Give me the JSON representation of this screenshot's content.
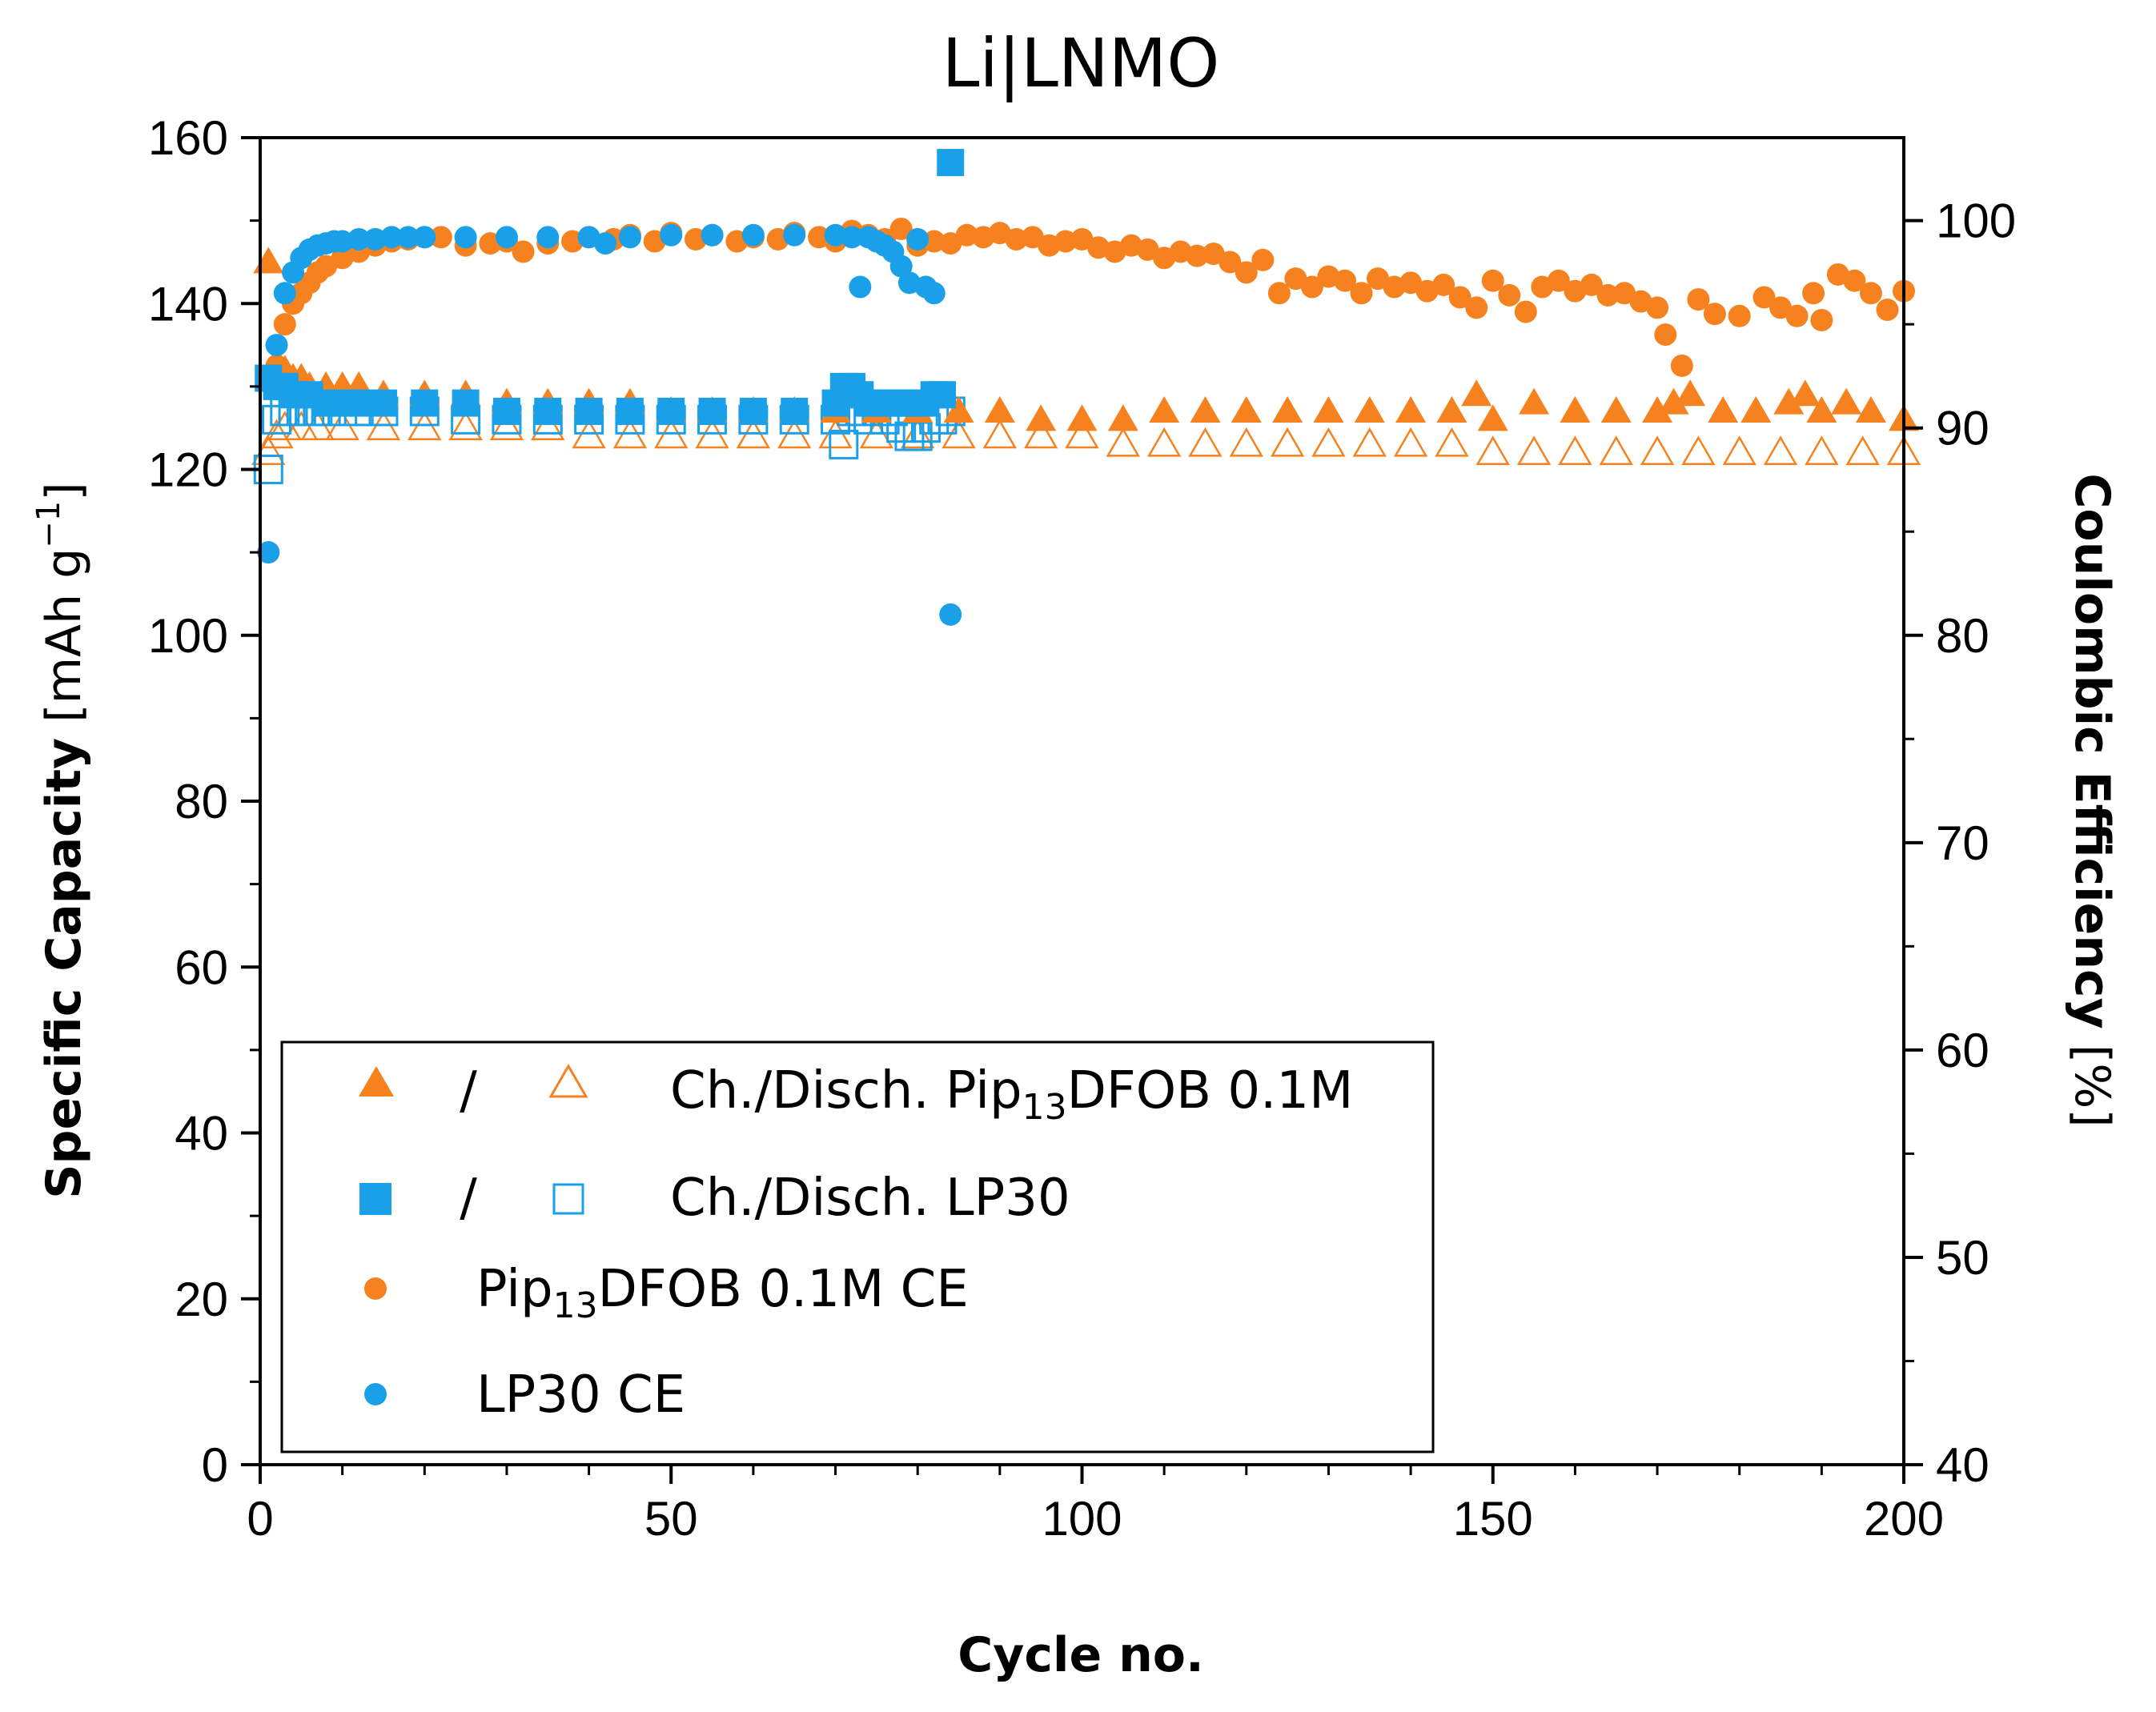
{
  "chart_data": {
    "type": "scatter",
    "title": "Li|LNMO",
    "xlabel": "Cycle no.",
    "ylabel": {
      "main": "Specific Capacity",
      "unit_prefix": "[mAh g",
      "unit_sup": "−1",
      "unit_suffix": "]"
    },
    "y2label": {
      "main": "Coulombic Efficiency",
      "unit": "[%]"
    },
    "xlim": [
      0,
      200
    ],
    "ylim": [
      0,
      160
    ],
    "y2lim": [
      40,
      104
    ],
    "x_ticks": [
      0,
      50,
      100,
      150,
      200
    ],
    "y_ticks": [
      0,
      20,
      40,
      60,
      80,
      100,
      120,
      140,
      160
    ],
    "y2_ticks": [
      40,
      50,
      60,
      70,
      80,
      90,
      100
    ],
    "colors": {
      "orange": "#F5821F",
      "blue": "#1AA0E8"
    },
    "legend": {
      "position": "bottom-left",
      "sep": "/",
      "entries": [
        {
          "id": "pip-ch-disch",
          "pre": "Ch./Disch. Pip",
          "sub": "13",
          "post": "DFOB 0.1M"
        },
        {
          "id": "lp30-ch-disch",
          "pre": "Ch./Disch. LP30",
          "sub": "",
          "post": ""
        },
        {
          "id": "pip-ce",
          "pre": "Pip",
          "sub": "13",
          "post": "DFOB 0.1M CE"
        },
        {
          "id": "lp30-ce",
          "pre": "LP30 CE",
          "sub": "",
          "post": ""
        }
      ]
    },
    "series": [
      {
        "name": "Ch. Pip13DFOB 0.1M",
        "axis": "left",
        "marker": "triangle",
        "filled": true,
        "color": "#F5821F",
        "x": [
          1,
          2,
          3,
          4,
          5,
          6,
          8,
          10,
          12,
          15,
          20,
          25,
          30,
          35,
          40,
          45,
          50,
          55,
          60,
          65,
          70,
          75,
          80,
          85,
          90,
          95,
          100,
          105,
          110,
          115,
          120,
          125,
          130,
          135,
          140,
          145,
          148,
          150,
          155,
          160,
          165,
          170,
          172,
          174,
          178,
          182,
          186,
          188,
          190,
          193,
          196,
          200
        ],
        "y": [
          145,
          133,
          132,
          131,
          131,
          130,
          130,
          130,
          130,
          129,
          129,
          129,
          128,
          128,
          128,
          128,
          127,
          127,
          127,
          127,
          127,
          127,
          127,
          127,
          127,
          126,
          126,
          126,
          127,
          127,
          127,
          127,
          127,
          127,
          127,
          127,
          129,
          126,
          128,
          127,
          127,
          127,
          128,
          129,
          127,
          127,
          128,
          129,
          127,
          128,
          127,
          126
        ]
      },
      {
        "name": "Disch. Pip13DFOB 0.1M",
        "axis": "left",
        "marker": "triangle",
        "filled": false,
        "color": "#F5821F",
        "x": [
          1,
          2,
          3,
          5,
          7,
          10,
          15,
          20,
          25,
          30,
          35,
          40,
          45,
          50,
          55,
          60,
          65,
          70,
          75,
          80,
          85,
          90,
          95,
          100,
          105,
          110,
          115,
          120,
          125,
          130,
          135,
          140,
          145,
          150,
          155,
          160,
          165,
          170,
          175,
          180,
          185,
          190,
          195,
          200
        ],
        "y": [
          122,
          124,
          125,
          125,
          125,
          125,
          125,
          125,
          125,
          125,
          125,
          124,
          124,
          124,
          124,
          124,
          124,
          124,
          124,
          124,
          124,
          124,
          124,
          124,
          123,
          123,
          123,
          123,
          123,
          123,
          123,
          123,
          123,
          122,
          122,
          122,
          122,
          122,
          122,
          122,
          122,
          122,
          122,
          122
        ]
      },
      {
        "name": "Pip13DFOB 0.1M CE",
        "axis": "right",
        "marker": "circle",
        "filled": true,
        "color": "#F5821F",
        "x": [
          1,
          2,
          3,
          4,
          5,
          6,
          7,
          8,
          10,
          12,
          14,
          16,
          18,
          20,
          22,
          25,
          28,
          30,
          32,
          35,
          38,
          40,
          43,
          45,
          48,
          50,
          53,
          55,
          58,
          60,
          63,
          65,
          68,
          70,
          72,
          74,
          76,
          78,
          80,
          82,
          84,
          86,
          88,
          90,
          92,
          94,
          96,
          98,
          100,
          102,
          104,
          106,
          108,
          110,
          112,
          114,
          116,
          118,
          120,
          122,
          124,
          126,
          128,
          130,
          132,
          134,
          136,
          138,
          140,
          142,
          144,
          146,
          148,
          150,
          152,
          154,
          156,
          158,
          160,
          162,
          164,
          166,
          168,
          170,
          171,
          173,
          175,
          177,
          180,
          183,
          185,
          187,
          189,
          190,
          192,
          194,
          196,
          198,
          200
        ],
        "y": [
          84,
          93,
          95,
          96,
          96.5,
          97,
          97.5,
          97.8,
          98.2,
          98.5,
          98.8,
          99,
          99.1,
          99.2,
          99.2,
          98.8,
          98.9,
          99,
          98.5,
          98.9,
          99,
          99.2,
          99.1,
          99.3,
          99,
          99.4,
          99.1,
          99.3,
          99,
          99.2,
          99.1,
          99.4,
          99.2,
          99,
          99.5,
          99.3,
          99.1,
          99.6,
          98.8,
          99,
          98.9,
          99.3,
          99.2,
          99.4,
          99.1,
          99.2,
          98.8,
          99,
          99.1,
          98.7,
          98.5,
          98.8,
          98.6,
          98.2,
          98.5,
          98.3,
          98.4,
          98,
          97.5,
          98.1,
          96.5,
          97.2,
          96.8,
          97.3,
          97.1,
          96.5,
          97.2,
          96.8,
          97,
          96.6,
          96.9,
          96.3,
          95.8,
          97.1,
          96.4,
          95.6,
          96.8,
          97.1,
          96.6,
          96.9,
          96.4,
          96.5,
          96.1,
          95.8,
          94.5,
          93,
          96.2,
          95.5,
          95.4,
          96.3,
          95.8,
          95.4,
          96.5,
          95.2,
          97.4,
          97.1,
          96.5,
          95.7,
          96.6
        ]
      },
      {
        "name": "Ch. LP30",
        "axis": "left",
        "marker": "square",
        "filled": true,
        "color": "#1AA0E8",
        "x": [
          1,
          2,
          3,
          4,
          5,
          6,
          8,
          10,
          12,
          15,
          20,
          25,
          30,
          35,
          40,
          45,
          50,
          55,
          60,
          65,
          70,
          71,
          72,
          73,
          74,
          75,
          76,
          77,
          78,
          79,
          80,
          81,
          82,
          83,
          84
        ],
        "y": [
          131,
          130,
          130,
          129,
          129,
          129,
          128,
          128,
          128,
          128,
          128,
          128,
          127,
          127,
          127,
          127,
          127,
          127,
          127,
          127,
          128,
          130,
          130,
          129,
          128,
          128,
          128,
          128,
          128,
          128,
          128,
          128,
          129,
          129,
          157
        ]
      },
      {
        "name": "Disch. LP30",
        "axis": "left",
        "marker": "square",
        "filled": false,
        "color": "#1AA0E8",
        "x": [
          1,
          2,
          3,
          4,
          5,
          6,
          7,
          8,
          10,
          12,
          15,
          20,
          25,
          30,
          35,
          40,
          45,
          50,
          55,
          60,
          65,
          70,
          71,
          72,
          73,
          74,
          75,
          76,
          77,
          78,
          79,
          80,
          81,
          82,
          83,
          84
        ],
        "y": [
          120,
          126,
          127,
          127,
          127,
          127,
          127,
          127,
          127,
          127,
          127,
          127,
          126,
          126,
          126,
          126,
          126,
          126,
          126,
          126,
          126,
          126,
          123,
          127,
          127,
          126,
          127,
          126,
          127,
          125,
          124,
          124,
          125,
          126,
          126,
          127
        ]
      },
      {
        "name": "LP30 CE",
        "axis": "right",
        "marker": "circle",
        "filled": true,
        "color": "#1AA0E8",
        "x": [
          1,
          2,
          3,
          4,
          5,
          6,
          7,
          8,
          9,
          10,
          12,
          14,
          16,
          18,
          20,
          25,
          30,
          35,
          40,
          42,
          45,
          50,
          55,
          60,
          65,
          70,
          72,
          73,
          74,
          75,
          76,
          77,
          78,
          79,
          80,
          81,
          82,
          84
        ],
        "y": [
          84,
          94,
          96.5,
          97.5,
          98.2,
          98.6,
          98.8,
          98.9,
          99,
          99,
          99.1,
          99.1,
          99.2,
          99.2,
          99.2,
          99.2,
          99.2,
          99.2,
          99.2,
          98.9,
          99.2,
          99.3,
          99.3,
          99.3,
          99.3,
          99.3,
          99.2,
          96.8,
          99.2,
          99,
          98.8,
          98.5,
          97.8,
          97,
          99.1,
          96.8,
          96.5,
          81
        ]
      }
    ]
  }
}
